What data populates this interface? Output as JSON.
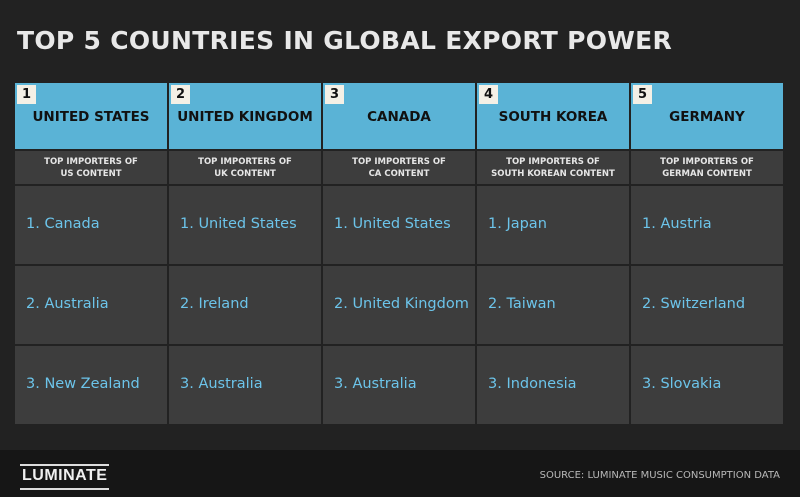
{
  "title": "TOP 5 COUNTRIES IN GLOBAL EXPORT POWER",
  "colors": {
    "background": "#222222",
    "header": "#5ab3d6",
    "cell": "#3d3d3d",
    "entry_text": "#6cc4ea",
    "rank_badge": "#f4f0e6"
  },
  "chart_data": {
    "type": "table",
    "columns": [
      {
        "rank": "1",
        "country": "UNITED STATES",
        "subtitle": "TOP IMPORTERS OF\nUS CONTENT",
        "importers": [
          "1. Canada",
          "2. Australia",
          "3. New Zealand"
        ]
      },
      {
        "rank": "2",
        "country": "UNITED KINGDOM",
        "subtitle": "TOP IMPORTERS OF\nUK CONTENT",
        "importers": [
          "1. United States",
          "2. Ireland",
          "3. Australia"
        ]
      },
      {
        "rank": "3",
        "country": "CANADA",
        "subtitle": "TOP IMPORTERS OF\nCA CONTENT",
        "importers": [
          "1. United States",
          "2. United Kingdom",
          "3. Australia"
        ]
      },
      {
        "rank": "4",
        "country": "SOUTH KOREA",
        "subtitle": "TOP IMPORTERS OF\nSOUTH KOREAN CONTENT",
        "importers": [
          "1. Japan",
          "2. Taiwan",
          "3. Indonesia"
        ]
      },
      {
        "rank": "5",
        "country": "GERMANY",
        "subtitle": "TOP IMPORTERS OF\nGERMAN CONTENT",
        "importers": [
          "1. Austria",
          "2. Switzerland",
          "3. Slovakia"
        ]
      }
    ]
  },
  "footer": {
    "logo": "LUMINATE",
    "source": "SOURCE: LUMINATE MUSIC CONSUMPTION DATA"
  }
}
